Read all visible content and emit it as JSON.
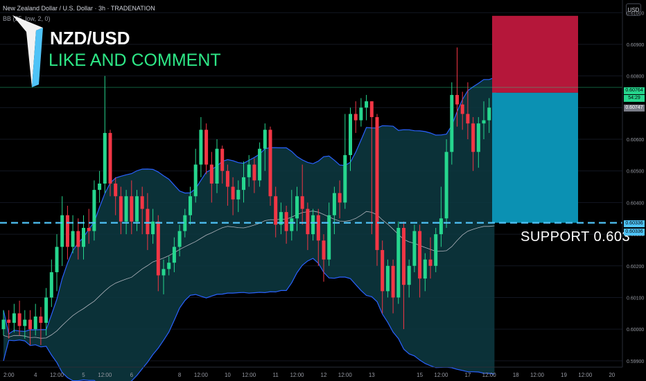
{
  "header": {
    "symbol_line": "New Zealand Dollar / U.S. Dollar · 3h · TRADENATION",
    "indicator_line": "BB (25, low, 2, 0)",
    "currency_button": "USD"
  },
  "overlay": {
    "pair": "NZD/USD",
    "cta": "LIKE AND COMMENT",
    "support_label": "SUPPORT  0.603"
  },
  "price_tags": {
    "current": "0.60764",
    "countdown": "54:29",
    "entry": "0.60747",
    "support_a": "0.60336",
    "support_b": "0.60336"
  },
  "colors": {
    "up": "#26d68e",
    "down": "#f23645",
    "band_fill": "#0d3a42",
    "band_line": "#2962ff",
    "basis": "#b2b5be",
    "stop_zone": "#b5173a",
    "target_zone": "#0b91b3",
    "support_line": "#4fc3f7"
  },
  "chart_data": {
    "type": "candlestick",
    "y_axis": {
      "ticks": [
        "0.61000",
        "0.60900",
        "0.60800",
        "0.60700",
        "0.60600",
        "0.60500",
        "0.60400",
        "0.60300",
        "0.60200",
        "0.60100",
        "0.60000",
        "0.59900"
      ],
      "ylim": [
        0.5988,
        0.6104
      ]
    },
    "x_axis": {
      "ticks": [
        {
          "label": "2:00",
          "i": 0
        },
        {
          "label": "4",
          "i": 6
        },
        {
          "label": "12:00",
          "i": 10
        },
        {
          "label": "5",
          "i": 15
        },
        {
          "label": "12:00",
          "i": 19
        },
        {
          "label": "6",
          "i": 24
        },
        {
          "label": "8",
          "i": 33
        },
        {
          "label": "12:00",
          "i": 37
        },
        {
          "label": "10",
          "i": 42
        },
        {
          "label": "12:00",
          "i": 46
        },
        {
          "label": "11",
          "i": 51
        },
        {
          "label": "12:00",
          "i": 55
        },
        {
          "label": "12",
          "i": 60
        },
        {
          "label": "12:00",
          "i": 64
        },
        {
          "label": "13",
          "i": 69
        },
        {
          "label": "15",
          "i": 78
        },
        {
          "label": "12:00",
          "i": 82
        },
        {
          "label": "17",
          "i": 87
        },
        {
          "label": "12:00",
          "i": 91
        },
        {
          "label": "18",
          "i": 96
        },
        {
          "label": "12:00",
          "i": 100
        },
        {
          "label": "19",
          "i": 105
        },
        {
          "label": "12:00",
          "i": 109
        },
        {
          "label": "20",
          "i": 114
        }
      ]
    },
    "candles": [
      [
        0.6,
        0.6003,
        0.5998,
        0.6006
      ],
      [
        0.6003,
        0.6002,
        0.5997,
        0.6006
      ],
      [
        0.6002,
        0.6005,
        0.5999,
        0.6008
      ],
      [
        0.6005,
        0.6001,
        0.5998,
        0.6009
      ],
      [
        0.6001,
        0.6003,
        0.5997,
        0.6006
      ],
      [
        0.6003,
        0.6,
        0.5995,
        0.6006
      ],
      [
        0.6,
        0.6004,
        0.5998,
        0.6008
      ],
      [
        0.6004,
        0.6002,
        0.5995,
        0.6007
      ],
      [
        0.6002,
        0.601,
        0.5998,
        0.6013
      ],
      [
        0.601,
        0.6018,
        0.6007,
        0.6022
      ],
      [
        0.6018,
        0.6026,
        0.6012,
        0.603
      ],
      [
        0.6026,
        0.6036,
        0.602,
        0.6042
      ],
      [
        0.6036,
        0.6026,
        0.6022,
        0.6039
      ],
      [
        0.6026,
        0.6031,
        0.6024,
        0.6036
      ],
      [
        0.6031,
        0.6026,
        0.6022,
        0.6035
      ],
      [
        0.6026,
        0.6032,
        0.6022,
        0.6036
      ],
      [
        0.6032,
        0.6031,
        0.6027,
        0.6038
      ],
      [
        0.6031,
        0.6044,
        0.6028,
        0.6047
      ],
      [
        0.6044,
        0.6046,
        0.604,
        0.605
      ],
      [
        0.6046,
        0.6062,
        0.6043,
        0.608
      ],
      [
        0.6062,
        0.6046,
        0.6042,
        0.6063
      ],
      [
        0.6046,
        0.6042,
        0.6036,
        0.6048
      ],
      [
        0.6042,
        0.6034,
        0.603,
        0.6045
      ],
      [
        0.6034,
        0.6042,
        0.603,
        0.6044
      ],
      [
        0.6042,
        0.6034,
        0.603,
        0.6047
      ],
      [
        0.6034,
        0.6042,
        0.6031,
        0.6044
      ],
      [
        0.6042,
        0.6038,
        0.603,
        0.6045
      ],
      [
        0.6038,
        0.603,
        0.6025,
        0.6043
      ],
      [
        0.603,
        0.6034,
        0.6027,
        0.6038
      ],
      [
        0.6034,
        0.6017,
        0.6012,
        0.6036
      ],
      [
        0.6017,
        0.6019,
        0.6011,
        0.6022
      ],
      [
        0.6019,
        0.6021,
        0.6017,
        0.6023
      ],
      [
        0.6021,
        0.6026,
        0.6018,
        0.6029
      ],
      [
        0.6026,
        0.6031,
        0.6023,
        0.6033
      ],
      [
        0.6031,
        0.6036,
        0.6029,
        0.6038
      ],
      [
        0.6036,
        0.6042,
        0.6033,
        0.6045
      ],
      [
        0.6042,
        0.6052,
        0.604,
        0.6057
      ],
      [
        0.6052,
        0.6063,
        0.6048,
        0.6067
      ],
      [
        0.6063,
        0.6052,
        0.6049,
        0.6065
      ],
      [
        0.6052,
        0.6046,
        0.604,
        0.6056
      ],
      [
        0.6046,
        0.6057,
        0.6043,
        0.606
      ],
      [
        0.6057,
        0.605,
        0.6046,
        0.6058
      ],
      [
        0.605,
        0.6045,
        0.6039,
        0.6052
      ],
      [
        0.6045,
        0.6041,
        0.6036,
        0.6048
      ],
      [
        0.6041,
        0.6044,
        0.6037,
        0.6047
      ],
      [
        0.6044,
        0.6048,
        0.604,
        0.6053
      ],
      [
        0.6048,
        0.6052,
        0.6045,
        0.6055
      ],
      [
        0.6052,
        0.6047,
        0.6043,
        0.6054
      ],
      [
        0.6047,
        0.6057,
        0.6045,
        0.6059
      ],
      [
        0.6057,
        0.6063,
        0.605,
        0.6065
      ],
      [
        0.6063,
        0.6042,
        0.6039,
        0.6064
      ],
      [
        0.6042,
        0.6033,
        0.6029,
        0.6045
      ],
      [
        0.6033,
        0.6037,
        0.603,
        0.604
      ],
      [
        0.6037,
        0.6031,
        0.6027,
        0.6039
      ],
      [
        0.6031,
        0.6035,
        0.6028,
        0.6044
      ],
      [
        0.6035,
        0.6042,
        0.6031,
        0.6045
      ],
      [
        0.6042,
        0.6038,
        0.6033,
        0.6052
      ],
      [
        0.6038,
        0.603,
        0.6025,
        0.604
      ],
      [
        0.603,
        0.6036,
        0.6028,
        0.6038
      ],
      [
        0.6036,
        0.6028,
        0.602,
        0.6038
      ],
      [
        0.6028,
        0.6022,
        0.6015,
        0.603
      ],
      [
        0.6022,
        0.6036,
        0.602,
        0.604
      ],
      [
        0.6036,
        0.6043,
        0.603,
        0.6045
      ],
      [
        0.6043,
        0.604,
        0.6035,
        0.6047
      ],
      [
        0.604,
        0.6055,
        0.6038,
        0.6068
      ],
      [
        0.6055,
        0.6068,
        0.605,
        0.607
      ],
      [
        0.6068,
        0.6066,
        0.6062,
        0.6072
      ],
      [
        0.6066,
        0.607,
        0.6064,
        0.6073
      ],
      [
        0.607,
        0.6072,
        0.6066,
        0.6074
      ],
      [
        0.6072,
        0.6067,
        0.603,
        0.6072
      ],
      [
        0.6067,
        0.6025,
        0.602,
        0.6068
      ],
      [
        0.6025,
        0.6012,
        0.6005,
        0.6028
      ],
      [
        0.6012,
        0.602,
        0.601,
        0.6022
      ],
      [
        0.602,
        0.601,
        0.6005,
        0.6022
      ],
      [
        0.601,
        0.6032,
        0.6008,
        0.6034
      ],
      [
        0.6032,
        0.6014,
        0.6,
        0.6034
      ],
      [
        0.6014,
        0.602,
        0.601,
        0.6022
      ],
      [
        0.602,
        0.6031,
        0.6018,
        0.6033
      ],
      [
        0.6031,
        0.6016,
        0.601,
        0.6033
      ],
      [
        0.6016,
        0.6022,
        0.6012,
        0.6024
      ],
      [
        0.6022,
        0.602,
        0.6016,
        0.6029
      ],
      [
        0.602,
        0.603,
        0.6018,
        0.6032
      ],
      [
        0.603,
        0.6035,
        0.6026,
        0.6045
      ],
      [
        0.6035,
        0.6056,
        0.6032,
        0.606
      ],
      [
        0.6056,
        0.6074,
        0.6052,
        0.6078
      ],
      [
        0.6074,
        0.6071,
        0.6064,
        0.6089
      ],
      [
        0.6071,
        0.6068,
        0.6063,
        0.6075
      ],
      [
        0.6068,
        0.6065,
        0.606,
        0.6078
      ],
      [
        0.6065,
        0.6056,
        0.605,
        0.6067
      ],
      [
        0.6056,
        0.6065,
        0.6051,
        0.6067
      ],
      [
        0.6065,
        0.6066,
        0.606,
        0.6072
      ],
      [
        0.6066,
        0.607,
        0.6062,
        0.6073
      ],
      [
        0.607,
        0.6076,
        0.6068,
        0.6078
      ]
    ],
    "levels": {
      "stop_top": 0.6099,
      "entry": 0.60747,
      "current": 0.60764,
      "support": 0.60336
    }
  }
}
